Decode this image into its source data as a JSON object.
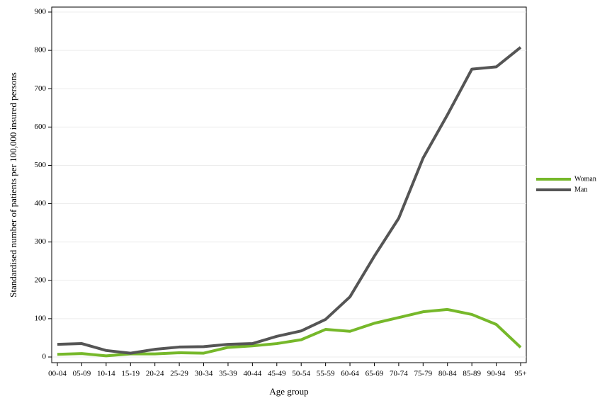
{
  "chart_data": {
    "type": "line",
    "xlabel": "Age group",
    "ylabel": "Standardised number of patients per 100,000 insured persons",
    "categories": [
      "00-04",
      "05-09",
      "10-14",
      "15-19",
      "20-24",
      "25-29",
      "30-34",
      "35-39",
      "40-44",
      "45-49",
      "50-54",
      "55-59",
      "60-64",
      "65-69",
      "70-74",
      "75-79",
      "80-84",
      "85-89",
      "90-94",
      "95+"
    ],
    "series": [
      {
        "name": "Woman",
        "color": "#76b82a",
        "values": [
          7,
          9,
          3,
          8,
          8,
          11,
          10,
          25,
          29,
          35,
          45,
          72,
          67,
          88,
          103,
          118,
          124,
          111,
          85,
          25
        ]
      },
      {
        "name": "Man",
        "color": "#555555",
        "values": [
          33,
          35,
          17,
          10,
          20,
          26,
          27,
          33,
          35,
          54,
          68,
          98,
          157,
          263,
          362,
          519,
          632,
          751,
          757,
          808
        ]
      }
    ],
    "ylim": [
      0,
      900
    ],
    "yticks": [
      0,
      100,
      200,
      300,
      400,
      500,
      600,
      700,
      800,
      900
    ],
    "grid": true,
    "legend": "right"
  }
}
